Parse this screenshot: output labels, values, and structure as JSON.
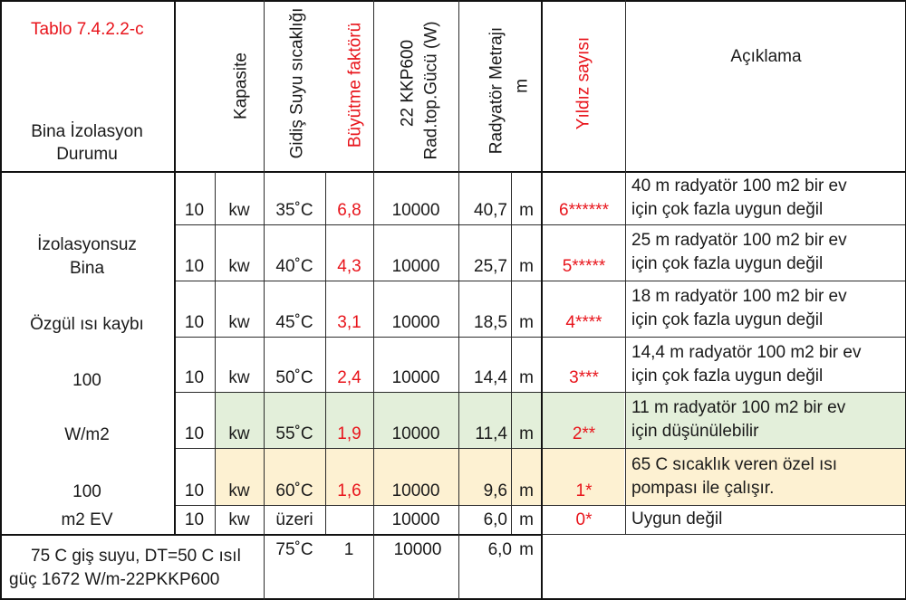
{
  "header": {
    "table_id": "Tablo 7.4.2.2-c",
    "bina_line1": "Bina İzolasyon",
    "bina_line2": "Durumu",
    "kapasite": "Kapasite",
    "gidis": "Gidiş Suyu sıcaklığı",
    "buyutme": "Büyütme faktörü",
    "kkp_line1": "22 KKP600",
    "kkp_line2": "Rad.top.Gücü (W)",
    "metraj_line1": "Radyatör Metrajı",
    "metraj_line2": "m",
    "yildiz": "Yıldız sayısı",
    "aciklama": "Açıklama"
  },
  "left_labels": {
    "l1": "İzolasyonsuz",
    "l2": "Bina",
    "l3": "Özgül ısı kaybı",
    "l4": "100",
    "l5": "W/m2",
    "l6": "100",
    "l7": "m2 EV"
  },
  "rows": [
    {
      "cap": "10",
      "unit": "kw",
      "temp": "35˚C",
      "factor": "6,8",
      "power": "10000",
      "len": "40,7",
      "m": "m",
      "stars": "6******",
      "desc1": "40 m radyatör 100 m2 bir ev",
      "desc2": "için çok fazla uygun değil"
    },
    {
      "cap": "10",
      "unit": "kw",
      "temp": "40˚C",
      "factor": "4,3",
      "power": "10000",
      "len": "25,7",
      "m": "m",
      "stars": "5*****",
      "desc1": "25 m radyatör 100 m2 bir ev",
      "desc2": "için çok fazla uygun değil"
    },
    {
      "cap": "10",
      "unit": "kw",
      "temp": "45˚C",
      "factor": "3,1",
      "power": "10000",
      "len": "18,5",
      "m": "m",
      "stars": "4****",
      "desc1": "18 m radyatör 100 m2 bir ev",
      "desc2": "için çok fazla uygun değil"
    },
    {
      "cap": "10",
      "unit": "kw",
      "temp": "50˚C",
      "factor": "2,4",
      "power": "10000",
      "len": "14,4",
      "m": "m",
      "stars": "3***",
      "desc1": "14,4 m radyatör 100 m2 bir ev",
      "desc2": "için çok fazla uygun değil"
    },
    {
      "cap": "10",
      "unit": "kw",
      "temp": "55˚C",
      "factor": "1,9",
      "power": "10000",
      "len": "11,4",
      "m": "m",
      "stars": "2**",
      "desc1": "11 m radyatör 100 m2 bir ev",
      "desc2": "için düşünülebilir"
    },
    {
      "cap": "10",
      "unit": "kw",
      "temp": "60˚C",
      "factor": "1,6",
      "power": "10000",
      "len": "9,6",
      "m": "m",
      "stars": "1*",
      "desc1": "65 C sıcaklık veren özel ısı",
      "desc2": "pompası ile çalışır."
    },
    {
      "cap": "10",
      "unit": "kw",
      "temp": "üzeri",
      "factor": "",
      "power": "10000",
      "len": "6,0",
      "m": "m",
      "stars": "0*",
      "desc1": "Uygun değil",
      "desc2": ""
    }
  ],
  "footer": {
    "note_line1": "75 C giş suyu, DT=50 C ısıl",
    "note_line2": "güç 1672 W/m-22PKKP600",
    "temp": "75˚C",
    "factor": "1",
    "power": "10000",
    "len": "6,0",
    "m": "m"
  },
  "colors": {
    "red": "#e8141b",
    "green_fill": "#e3efda",
    "yellow_fill": "#fdf1d2"
  }
}
